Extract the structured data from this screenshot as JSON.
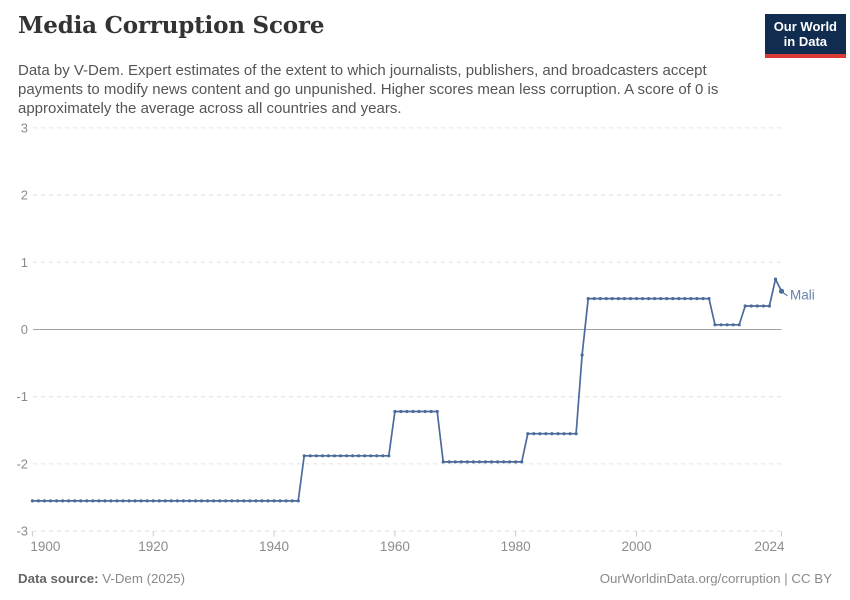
{
  "header": {
    "title": "Media Corruption Score",
    "subtitle": "Data by V-Dem. Expert estimates of the extent to which journalists, publishers, and broadcasters accept payments to modify news content and go unpunished. Higher scores mean less corruption. A score of 0 is approximately the average across all countries and years.",
    "logo": {
      "line1": "Our World",
      "line2": "in Data",
      "bg_color": "#102d50",
      "accent_color": "#d93a33"
    }
  },
  "chart_data": {
    "type": "line",
    "title": "Media Corruption Score",
    "entity_label": "Mali",
    "xlabel": "",
    "ylabel": "",
    "x_range": [
      1900,
      2024
    ],
    "y_range": [
      -3,
      3
    ],
    "y_ticks": [
      3,
      2,
      1,
      0,
      -1,
      -2,
      -3
    ],
    "x_ticks": [
      1900,
      1920,
      1940,
      1960,
      1980,
      2000,
      2024
    ],
    "grid": "horizontal-dashed",
    "zero_line": true,
    "legend_position": "end-of-line",
    "line_color": "#4c6a9c",
    "label_color": "#6782ae",
    "series": [
      {
        "name": "Mali",
        "step_segments": [
          {
            "from": 1900,
            "to": 1944,
            "value": -2.55
          },
          {
            "from": 1945,
            "to": 1959,
            "value": -1.88
          },
          {
            "from": 1960,
            "to": 1967,
            "value": -1.22
          },
          {
            "from": 1968,
            "to": 1981,
            "value": -1.97
          },
          {
            "from": 1982,
            "to": 1990,
            "value": -1.55
          },
          {
            "from": 1991,
            "to": 1991,
            "value": -0.38
          },
          {
            "from": 1992,
            "to": 2012,
            "value": 0.46
          },
          {
            "from": 2013,
            "to": 2017,
            "value": 0.07
          },
          {
            "from": 2018,
            "to": 2022,
            "value": 0.35
          },
          {
            "from": 2023,
            "to": 2023,
            "value": 0.75
          },
          {
            "from": 2024,
            "to": 2024,
            "value": 0.57
          }
        ]
      }
    ]
  },
  "footer": {
    "source_label": "Data source:",
    "source_value": "V-Dem (2025)",
    "credit": "OurWorldinData.org/corruption | CC BY"
  }
}
